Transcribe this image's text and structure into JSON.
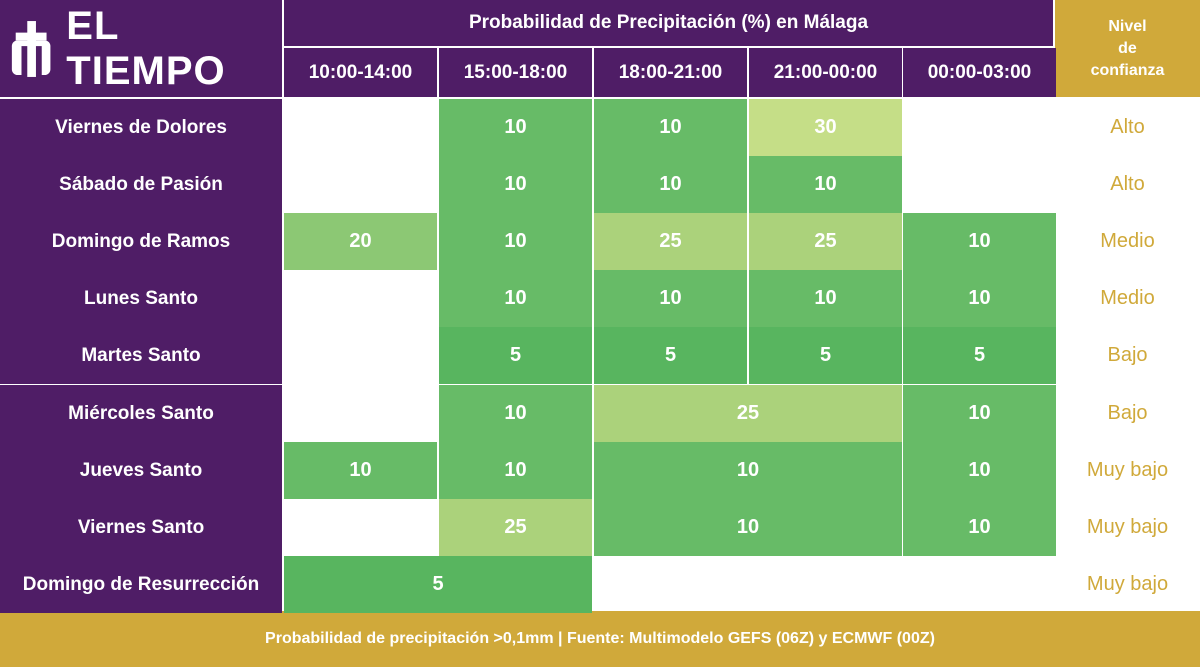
{
  "brand": {
    "logo_text": "EL TIEMPO"
  },
  "header": {
    "title": "Probabilidad de Precipitación (%) en Málaga",
    "confidence_title": [
      "Nivel",
      "de",
      "confianza"
    ]
  },
  "footer": {
    "text": "Probabilidad de precipitación >0,1mm | Fuente: Multimodelo GEFS (06Z) y ECMWF (00Z)"
  },
  "colors": {
    "purple": "#4f1d66",
    "gold": "#d0a93a",
    "very_low": "#58b55f",
    "low": "#67bb67",
    "mid_20": "#8cc874",
    "mid_25": "#abd27b",
    "high_30": "#c5de87",
    "white": "#ffffff"
  },
  "chart_data": {
    "type": "table",
    "title": "Probabilidad de Precipitación (%) en Málaga",
    "columns": [
      "10:00-14:00",
      "15:00-18:00",
      "18:00-21:00",
      "21:00-00:00",
      "00:00-03:00"
    ],
    "rows": [
      {
        "day": "Viernes de Dolores",
        "confidence": "Alto",
        "cells": [
          {
            "start": 1,
            "span": 1,
            "value": 10
          },
          {
            "start": 2,
            "span": 1,
            "value": 10
          },
          {
            "start": 3,
            "span": 1,
            "value": 30
          }
        ]
      },
      {
        "day": "Sábado de Pasión",
        "confidence": "Alto",
        "cells": [
          {
            "start": 1,
            "span": 1,
            "value": 10
          },
          {
            "start": 2,
            "span": 1,
            "value": 10
          },
          {
            "start": 3,
            "span": 1,
            "value": 10
          }
        ]
      },
      {
        "day": "Domingo de Ramos",
        "confidence": "Medio",
        "cells": [
          {
            "start": 0,
            "span": 1,
            "value": 20
          },
          {
            "start": 1,
            "span": 1,
            "value": 10
          },
          {
            "start": 2,
            "span": 1,
            "value": 25
          },
          {
            "start": 3,
            "span": 1,
            "value": 25
          },
          {
            "start": 4,
            "span": 1,
            "value": 10
          }
        ]
      },
      {
        "day": "Lunes Santo",
        "confidence": "Medio",
        "cells": [
          {
            "start": 1,
            "span": 1,
            "value": 10
          },
          {
            "start": 2,
            "span": 1,
            "value": 10
          },
          {
            "start": 3,
            "span": 1,
            "value": 10
          },
          {
            "start": 4,
            "span": 1,
            "value": 10
          }
        ]
      },
      {
        "day": "Martes Santo",
        "confidence": "Bajo",
        "cells": [
          {
            "start": 1,
            "span": 1,
            "value": 5
          },
          {
            "start": 2,
            "span": 1,
            "value": 5
          },
          {
            "start": 3,
            "span": 1,
            "value": 5
          },
          {
            "start": 4,
            "span": 1,
            "value": 5
          }
        ]
      },
      {
        "day": "Miércoles Santo",
        "confidence": "Bajo",
        "cells": [
          {
            "start": 1,
            "span": 1,
            "value": 10
          },
          {
            "start": 2,
            "span": 2,
            "value": 25
          },
          {
            "start": 4,
            "span": 1,
            "value": 10
          }
        ]
      },
      {
        "day": "Jueves Santo",
        "confidence": "Muy bajo",
        "cells": [
          {
            "start": 0,
            "span": 1,
            "value": 10
          },
          {
            "start": 1,
            "span": 1,
            "value": 10
          },
          {
            "start": 2,
            "span": 2,
            "value": 10
          },
          {
            "start": 4,
            "span": 1,
            "value": 10
          }
        ]
      },
      {
        "day": "Viernes Santo",
        "confidence": "Muy bajo",
        "cells": [
          {
            "start": 1,
            "span": 1,
            "value": 25
          },
          {
            "start": 2,
            "span": 2,
            "value": 10
          },
          {
            "start": 4,
            "span": 1,
            "value": 10
          }
        ]
      },
      {
        "day": "Domingo de Resurrección",
        "confidence": "Muy bajo",
        "cells": [
          {
            "start": 0,
            "span": 2,
            "value": 5
          }
        ]
      }
    ]
  }
}
